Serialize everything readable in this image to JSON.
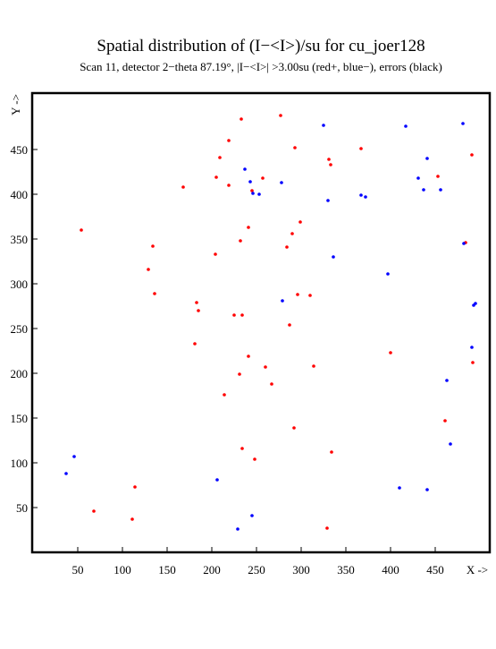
{
  "chart_data": {
    "type": "scatter",
    "title": "Spatial distribution of (I−<I>)/su for cu_joer128",
    "subtitle": "Scan 11, detector 2−theta  87.19°, |I−<I>| >3.00su (red+, blue−), errors (black)",
    "x_label": "X ->",
    "y_label": "Y ->",
    "xlim": [
      0,
      512
    ],
    "ylim": [
      0,
      512
    ],
    "xticks": [
      50,
      100,
      150,
      200,
      250,
      300,
      350,
      400,
      450
    ],
    "yticks": [
      50,
      100,
      150,
      200,
      250,
      300,
      350,
      400,
      450
    ],
    "series": [
      {
        "color": "#ff0000",
        "x": [
          233,
          277,
          219,
          293,
          367,
          209,
          331,
          333,
          491,
          205,
          257,
          453,
          168,
          219,
          245,
          54,
          241,
          299,
          290,
          232,
          134,
          284,
          484,
          204,
          129,
          136,
          296,
          310,
          183,
          185,
          225,
          234,
          287,
          181,
          400,
          241,
          260,
          314,
          492,
          231,
          267,
          214,
          461,
          292,
          234,
          334,
          248,
          114,
          68,
          111,
          329
        ],
        "values": [
          484,
          488,
          460,
          452,
          451,
          441,
          439,
          433,
          444,
          419,
          418,
          420,
          408,
          410,
          404,
          360,
          363,
          369,
          356,
          348,
          342,
          341,
          346,
          333,
          316,
          289,
          288,
          287,
          279,
          270,
          265,
          265,
          254,
          233,
          223,
          219,
          207,
          208,
          212,
          199,
          188,
          176,
          147,
          139,
          116,
          112,
          104,
          73,
          46,
          37,
          27
        ]
      },
      {
        "color": "#0000ff",
        "x": [
          325,
          417,
          481,
          441,
          237,
          243,
          278,
          431,
          437,
          456,
          246,
          253,
          367,
          372,
          330,
          482,
          336,
          397,
          279,
          493,
          495,
          491,
          463,
          467,
          46,
          37,
          206,
          410,
          441,
          245,
          229
        ],
        "values": [
          477,
          476,
          479,
          440,
          428,
          414,
          413,
          418,
          405,
          405,
          401,
          400,
          399,
          397,
          393,
          345,
          330,
          311,
          281,
          276,
          278,
          229,
          192,
          121,
          107,
          88,
          81,
          72,
          70,
          41,
          26
        ]
      }
    ]
  }
}
